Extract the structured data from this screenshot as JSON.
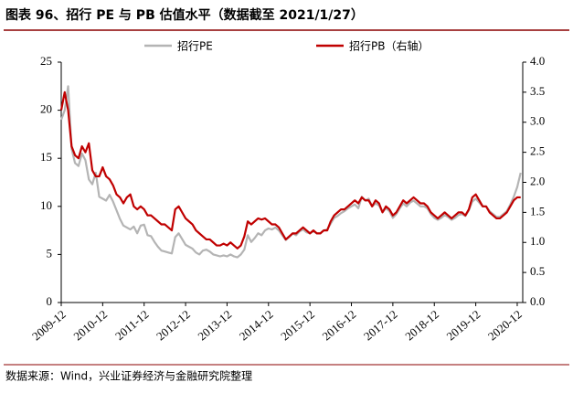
{
  "chart_data": {
    "type": "line",
    "title": "图表 96、招行 PE 与 PB 估值水平（数据截至 2021/1/27）",
    "source": "数据来源：Wind，兴业证券经济与金融研究院整理",
    "categories": [
      "2009-12",
      null,
      null,
      null,
      null,
      null,
      null,
      null,
      null,
      null,
      null,
      null,
      "2010-12",
      null,
      null,
      null,
      null,
      null,
      null,
      null,
      null,
      null,
      null,
      null,
      "2011-12",
      null,
      null,
      null,
      null,
      null,
      null,
      null,
      null,
      null,
      null,
      null,
      "2012-12",
      null,
      null,
      null,
      null,
      null,
      null,
      null,
      null,
      null,
      null,
      null,
      "2013-12",
      null,
      null,
      null,
      null,
      null,
      null,
      null,
      null,
      null,
      null,
      null,
      "2014-12",
      null,
      null,
      null,
      null,
      null,
      null,
      null,
      null,
      null,
      null,
      null,
      "2015-12",
      null,
      null,
      null,
      null,
      null,
      null,
      null,
      null,
      null,
      null,
      null,
      "2016-12",
      null,
      null,
      null,
      null,
      null,
      null,
      null,
      null,
      null,
      null,
      null,
      "2017-12",
      null,
      null,
      null,
      null,
      null,
      null,
      null,
      null,
      null,
      null,
      null,
      "2018-12",
      null,
      null,
      null,
      null,
      null,
      null,
      null,
      null,
      null,
      null,
      null,
      "2019-12",
      null,
      null,
      null,
      null,
      null,
      null,
      null,
      null,
      null,
      null,
      null,
      "2020-12",
      null
    ],
    "series": [
      {
        "name": "招行PE",
        "color": "#b4b4b4",
        "values": [
          19.0,
          20,
          22.5,
          16,
          14.5,
          14.2,
          15.5,
          14.8,
          12.8,
          12.3,
          13.5,
          11,
          10.8,
          10.6,
          11.2,
          10.5,
          9.6,
          8.7,
          8.0,
          7.8,
          7.6,
          7.9,
          7.2,
          8.0,
          8.1,
          7.0,
          6.9,
          6.3,
          5.8,
          5.4,
          5.3,
          5.2,
          5.1,
          6.8,
          7.2,
          6.6,
          6.0,
          5.8,
          5.6,
          5.2,
          5.0,
          5.4,
          5.5,
          5.3,
          5.0,
          4.9,
          4.8,
          4.9,
          4.8,
          5.0,
          4.8,
          4.7,
          5.0,
          5.5,
          7.0,
          6.3,
          6.7,
          7.2,
          7.0,
          7.5,
          7.7,
          7.6,
          7.8,
          7.5,
          7.0,
          6.5,
          6.8,
          7.2,
          7.0,
          7.4,
          7.6,
          7.3,
          7.2,
          7.4,
          7.2,
          7.2,
          7.5,
          7.6,
          8.2,
          8.8,
          9.0,
          9.3,
          9.5,
          9.8,
          10.0,
          10.2,
          9.8,
          11.0,
          10.6,
          10.8,
          10.0,
          10.3,
          10.1,
          9.4,
          9.8,
          9.5,
          8.8,
          9.2,
          9.8,
          10.3,
          10.0,
          10.4,
          10.6,
          10.3,
          10.0,
          10.0,
          9.8,
          9.2,
          8.8,
          8.6,
          8.8,
          9.1,
          8.9,
          8.6,
          8.8,
          9.1,
          9.2,
          9.0,
          9.6,
          10.5,
          10.8,
          10.4,
          10.0,
          10.0,
          9.5,
          9.2,
          8.9,
          8.9,
          9.2,
          9.5,
          10.2,
          11.0,
          12.0,
          13.5
        ]
      },
      {
        "name": "招行PB（右轴）",
        "color": "#c00000",
        "axis": "y2",
        "values": [
          3.2,
          3.5,
          3.2,
          2.6,
          2.45,
          2.4,
          2.6,
          2.5,
          2.65,
          2.2,
          2.1,
          2.1,
          2.25,
          2.1,
          2.05,
          1.95,
          1.8,
          1.75,
          1.65,
          1.75,
          1.8,
          1.6,
          1.55,
          1.6,
          1.55,
          1.45,
          1.45,
          1.4,
          1.35,
          1.3,
          1.3,
          1.25,
          1.2,
          1.55,
          1.6,
          1.5,
          1.4,
          1.35,
          1.3,
          1.2,
          1.15,
          1.1,
          1.05,
          1.05,
          1.0,
          0.95,
          0.95,
          0.98,
          0.95,
          1.0,
          0.95,
          0.9,
          0.95,
          1.1,
          1.35,
          1.3,
          1.35,
          1.4,
          1.38,
          1.4,
          1.35,
          1.3,
          1.3,
          1.25,
          1.15,
          1.05,
          1.1,
          1.15,
          1.15,
          1.2,
          1.25,
          1.2,
          1.15,
          1.2,
          1.15,
          1.15,
          1.2,
          1.2,
          1.35,
          1.45,
          1.5,
          1.55,
          1.55,
          1.6,
          1.65,
          1.7,
          1.65,
          1.75,
          1.7,
          1.7,
          1.6,
          1.7,
          1.65,
          1.5,
          1.6,
          1.55,
          1.45,
          1.5,
          1.6,
          1.7,
          1.65,
          1.7,
          1.75,
          1.7,
          1.65,
          1.65,
          1.6,
          1.5,
          1.45,
          1.4,
          1.45,
          1.5,
          1.45,
          1.4,
          1.45,
          1.5,
          1.5,
          1.45,
          1.55,
          1.75,
          1.8,
          1.7,
          1.6,
          1.6,
          1.5,
          1.45,
          1.4,
          1.4,
          1.45,
          1.5,
          1.6,
          1.7,
          1.75,
          1.75
        ]
      }
    ],
    "ylim": [
      0,
      25
    ],
    "yticks": [
      0,
      5,
      10,
      15,
      20,
      25
    ],
    "y2lim": [
      0,
      4
    ],
    "y2ticks": [
      {
        "value": 0,
        "label": "0.0"
      },
      0.5,
      {
        "value": 1,
        "label": "1.0"
      },
      1.5,
      {
        "value": 2,
        "label": "2.0"
      },
      2.5,
      {
        "value": 3,
        "label": "3.0"
      },
      3.5,
      {
        "value": 4,
        "label": "4.0"
      }
    ],
    "grid": false
  }
}
